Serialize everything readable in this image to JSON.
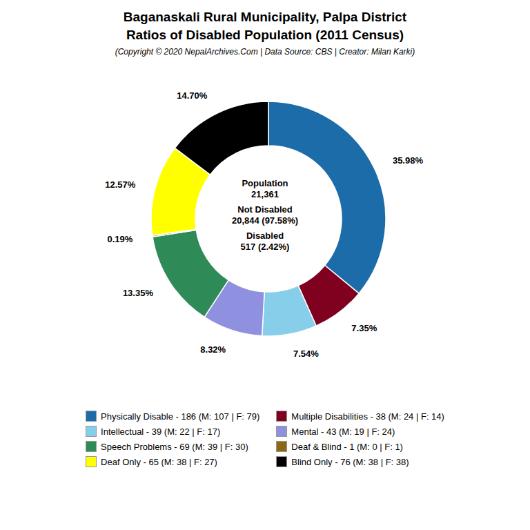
{
  "chart_data": {
    "type": "pie",
    "title": "Baganaskali Rural Municipality, Palpa District\nRatios of Disabled Population (2011 Census)",
    "subtitle": "(Copyright © 2020 NepalArchives.Com | Data Source: CBS | Creator: Milan Karki)",
    "categories": [
      "Physically Disable - 186 (M: 107 | F: 79)",
      "Multiple Disabilities - 38 (M: 24 | F: 14)",
      "Intellectual - 39 (M: 22 | F: 17)",
      "Mental - 43 (M: 19 | F: 24)",
      "Speech Problems - 69 (M: 39 | F: 30)",
      "Deaf & Blind - 1 (M: 0 | F: 1)",
      "Deaf Only - 65 (M: 38 | F: 27)",
      "Blind Only - 76 (M: 38 | F: 38)"
    ],
    "values": [
      35.98,
      7.35,
      7.54,
      8.32,
      13.35,
      0.19,
      12.57,
      14.7
    ],
    "value_labels": [
      "35.98%",
      "7.35%",
      "7.54%",
      "8.32%",
      "13.35%",
      "0.19%",
      "12.57%",
      "14.70%"
    ],
    "colors": [
      "#1b6ca8",
      "#800020",
      "#87ceeb",
      "#9090e0",
      "#2e8b57",
      "#8b6914",
      "#ffff00",
      "#000000"
    ],
    "data_labels": true,
    "legend": "bottom",
    "annotations": [
      "Population\n21,361",
      "Not Disabled\n20,844 (97.58%)",
      "Disabled\n517 (2.42%)"
    ]
  }
}
